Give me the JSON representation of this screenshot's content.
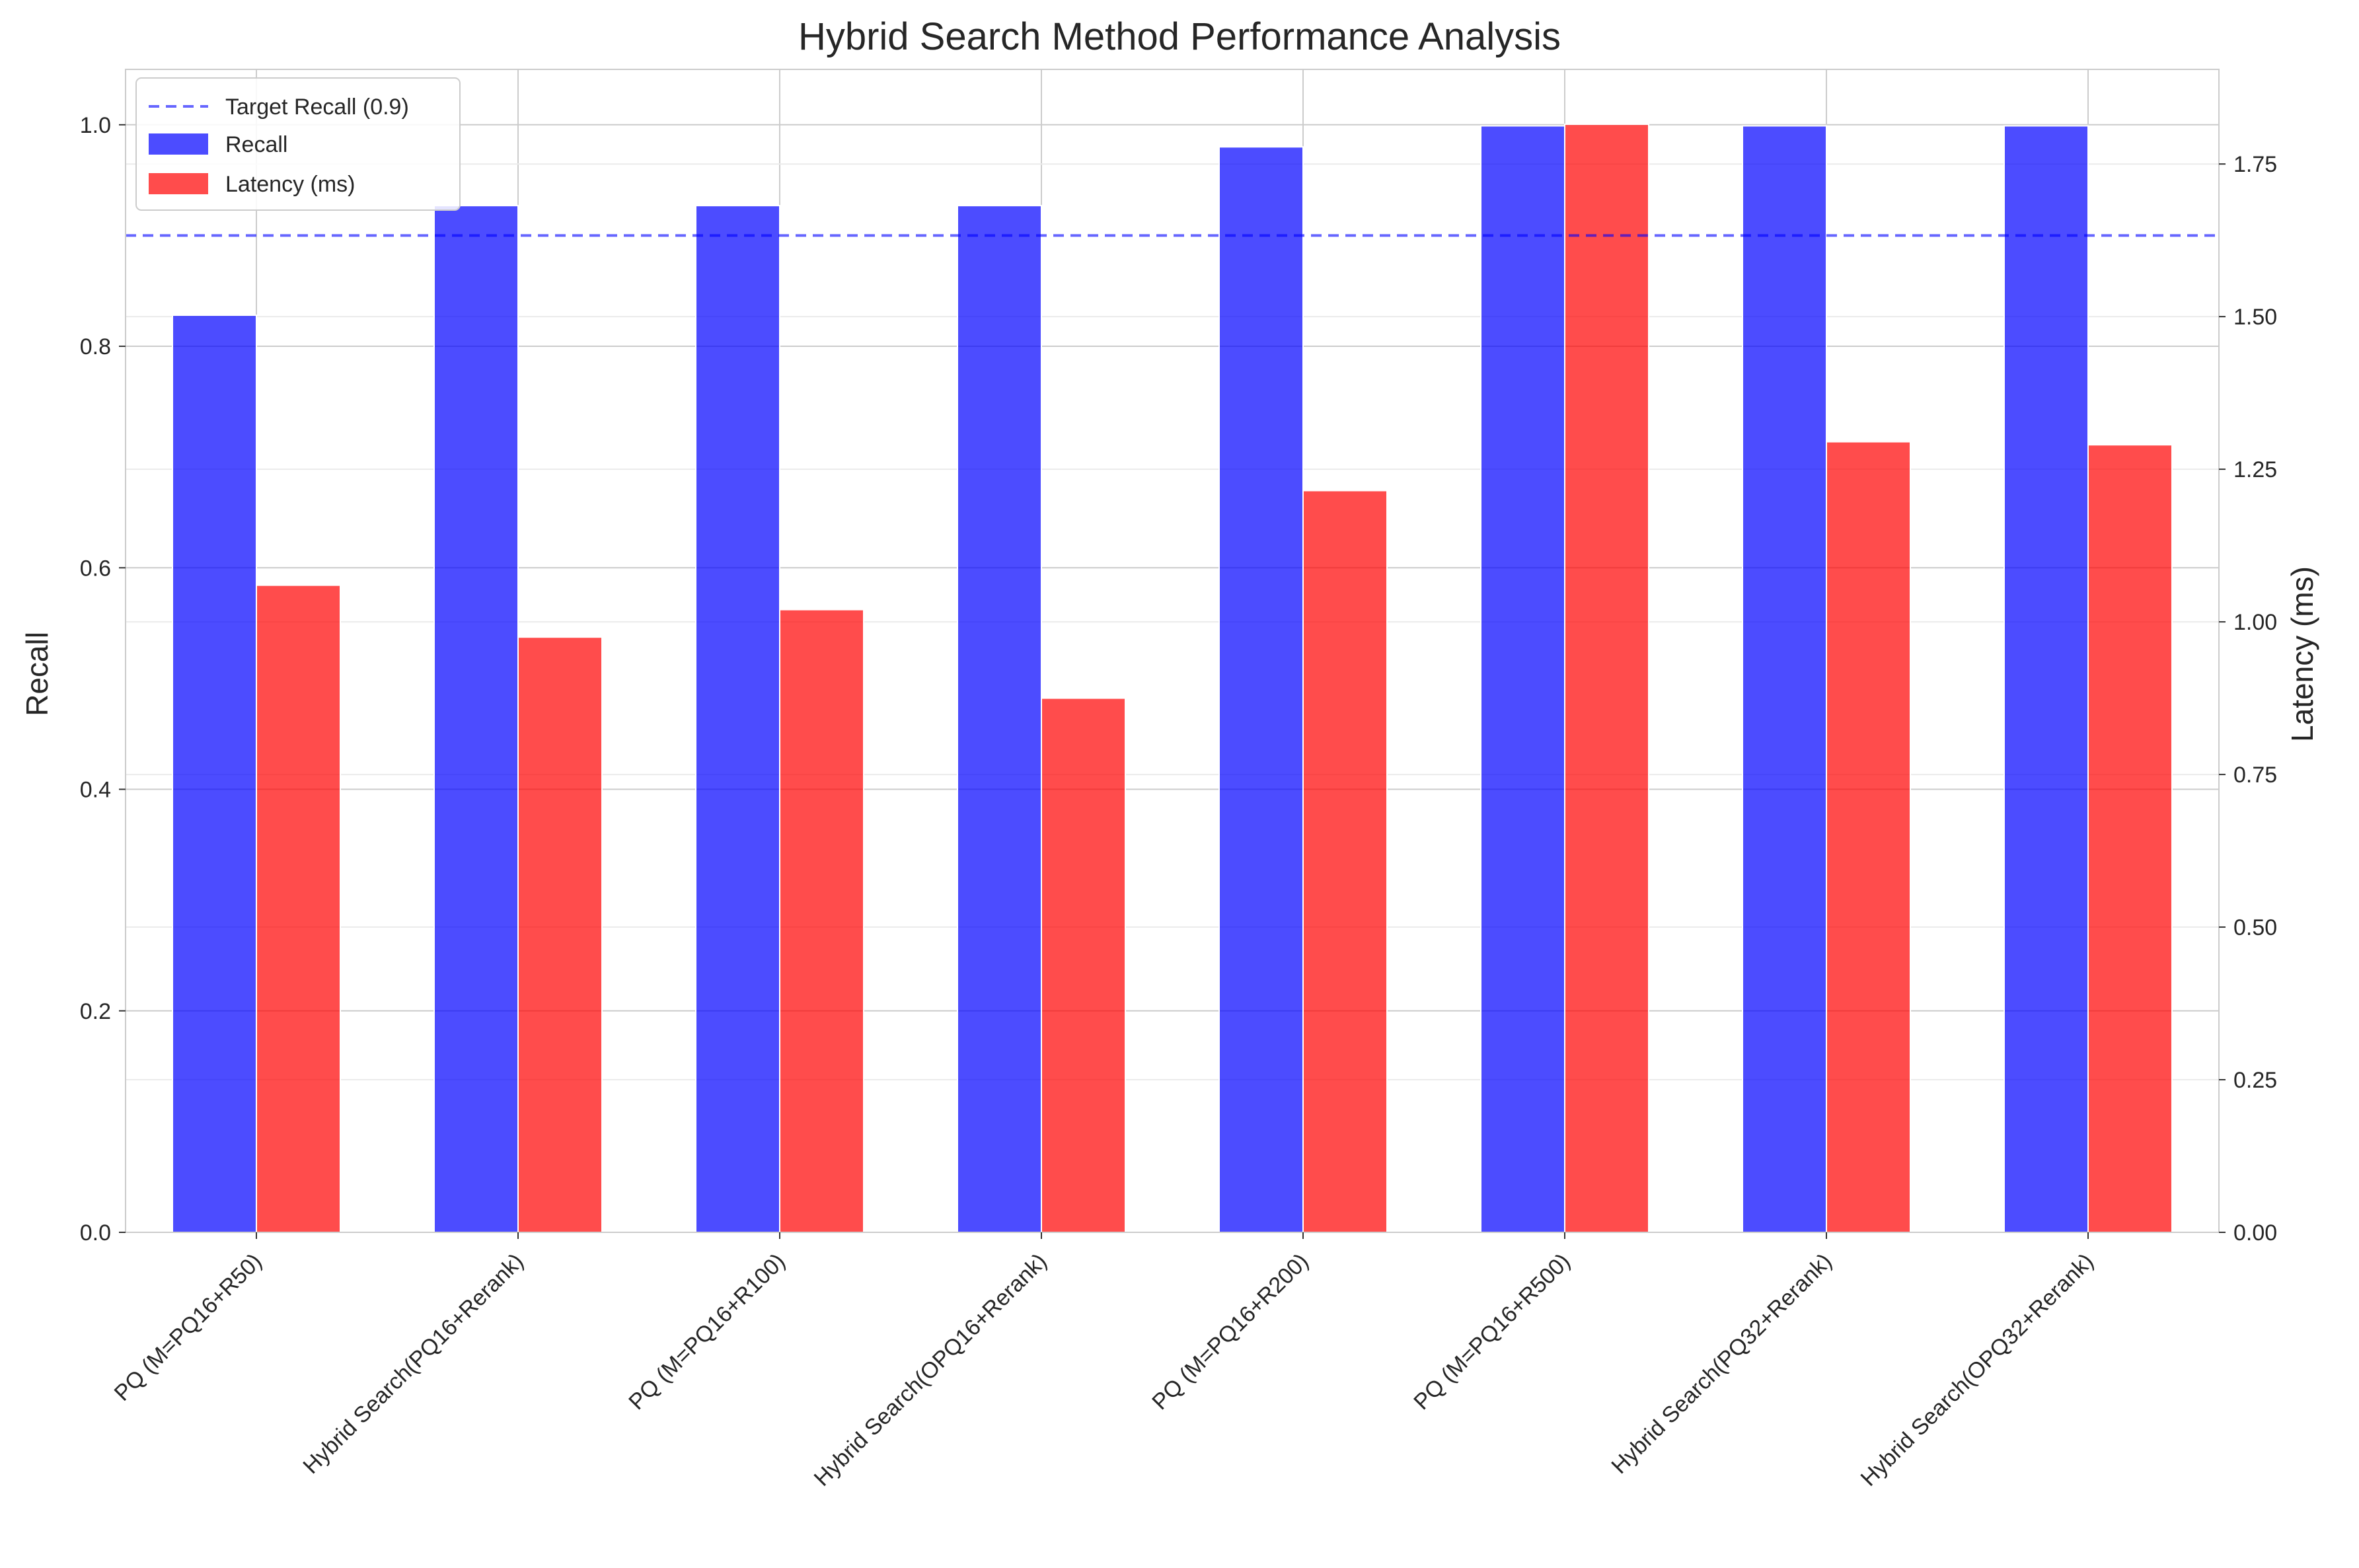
{
  "chart_data": {
    "type": "bar",
    "title": "Hybrid Search Method Performance Analysis",
    "categories": [
      "PQ (M=PQ16+R50)",
      "Hybrid Search(PQ16+Rerank)",
      "PQ (M=PQ16+R100)",
      "Hybrid Search(OPQ16+Rerank)",
      "PQ (M=PQ16+R200)",
      "PQ (M=PQ16+R500)",
      "Hybrid Search(PQ32+Rerank)",
      "Hybrid Search(OPQ32+Rerank)"
    ],
    "series": [
      {
        "name": "Recall",
        "axis": "left",
        "color": "#0000ff",
        "opacity": 0.7,
        "values": [
          0.828,
          0.927,
          0.927,
          0.927,
          0.98,
          0.999,
          0.999,
          0.999
        ]
      },
      {
        "name": "Latency (ms)",
        "axis": "right",
        "color": "#ff0000",
        "opacity": 0.7,
        "values": [
          1.06,
          0.975,
          1.02,
          0.875,
          1.215,
          1.815,
          1.295,
          1.29
        ]
      }
    ],
    "reference_line": {
      "name": "Target Recall (0.9)",
      "axis": "left",
      "value": 0.9,
      "color": "#0000ff",
      "style": "dashed"
    },
    "ylabel": "Recall",
    "y2label": "Latency (ms)",
    "ylim": [
      0,
      1.05
    ],
    "y2lim": [
      0,
      1.905
    ],
    "yticks": [
      "0.0",
      "0.2",
      "0.4",
      "0.6",
      "0.8",
      "1.0"
    ],
    "y2ticks": [
      "0.00",
      "0.25",
      "0.50",
      "0.75",
      "1.00",
      "1.25",
      "1.50",
      "1.75"
    ],
    "grid": true,
    "legend_position": "top-left"
  }
}
